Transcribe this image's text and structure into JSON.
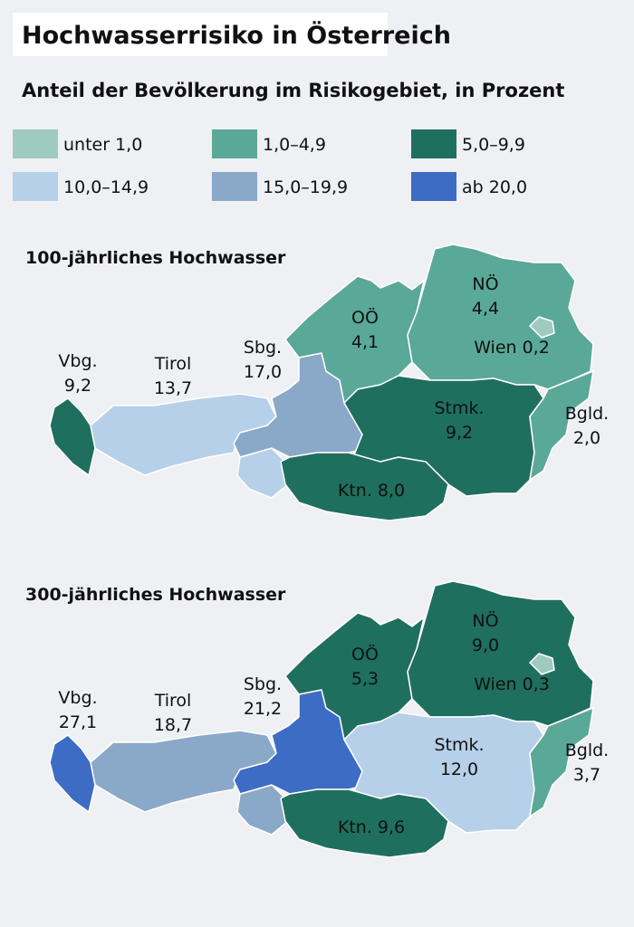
{
  "header": {
    "title": "Hochwasserrisiko in Österreich",
    "subtitle": "Anteil der Bevölkerung im Risikogebiet, in Prozent"
  },
  "legend": [
    {
      "label": "unter 1,0",
      "color": "#9fcabf"
    },
    {
      "label": "1,0–4,9",
      "color": "#5aa898"
    },
    {
      "label": "5,0–9,9",
      "color": "#1f6f5f"
    },
    {
      "label": "10,0–14,9",
      "color": "#b5d0e8"
    },
    {
      "label": "15,0–19,9",
      "color": "#8aa8c8"
    },
    {
      "label": "ab 20,0",
      "color": "#3d6cc4"
    }
  ],
  "maps": [
    {
      "title": "100-jährliches Hochwasser",
      "regions": [
        {
          "name": "Vbg.",
          "value": "9,2",
          "color": "#1f6f5f"
        },
        {
          "name": "Tirol",
          "value": "13,7",
          "color": "#b5d0e8"
        },
        {
          "name": "Sbg.",
          "value": "17,0",
          "color": "#8aa8c8"
        },
        {
          "name": "OÖ",
          "value": "4,1",
          "color": "#5aa898"
        },
        {
          "name": "NÖ",
          "value": "4,4",
          "color": "#5aa898"
        },
        {
          "name": "Wien",
          "value": "0,2",
          "color": "#9fcabf"
        },
        {
          "name": "Stmk.",
          "value": "9,2",
          "color": "#1f6f5f"
        },
        {
          "name": "Ktn.",
          "value": "8,0",
          "color": "#1f6f5f"
        },
        {
          "name": "Bgld.",
          "value": "2,0",
          "color": "#5aa898"
        }
      ]
    },
    {
      "title": "300-jährliches Hochwasser",
      "regions": [
        {
          "name": "Vbg.",
          "value": "27,1",
          "color": "#3d6cc4"
        },
        {
          "name": "Tirol",
          "value": "18,7",
          "color": "#8aa8c8"
        },
        {
          "name": "Sbg.",
          "value": "21,2",
          "color": "#3d6cc4"
        },
        {
          "name": "OÖ",
          "value": "5,3",
          "color": "#1f6f5f"
        },
        {
          "name": "NÖ",
          "value": "9,0",
          "color": "#1f6f5f"
        },
        {
          "name": "Wien",
          "value": "0,3",
          "color": "#9fcabf"
        },
        {
          "name": "Stmk.",
          "value": "12,0",
          "color": "#b5d0e8"
        },
        {
          "name": "Ktn.",
          "value": "9,6",
          "color": "#1f6f5f"
        },
        {
          "name": "Bgld.",
          "value": "3,7",
          "color": "#5aa898"
        }
      ]
    }
  ]
}
